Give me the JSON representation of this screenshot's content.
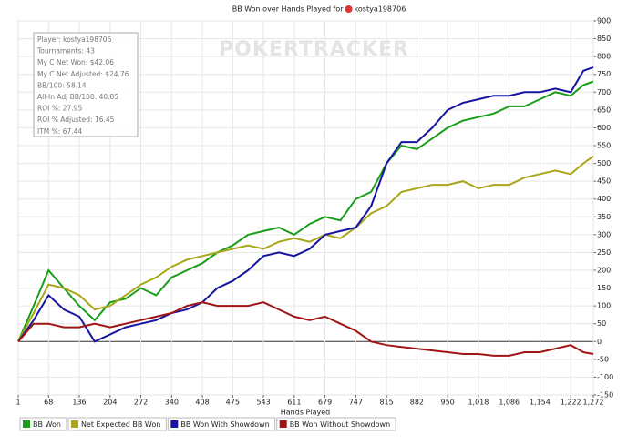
{
  "chart_data": {
    "type": "line",
    "title": "BB Won over Hands Played for",
    "player": "kostya198706",
    "x_label": "Hands Played",
    "watermark": "POKERTRACKER",
    "stats_box": [
      "Player: kostya198706",
      "Tournaments: 43",
      "My C Net Won: $42.06",
      "My C Net Adjusted: $24.76",
      "BB/100: 58.14",
      "All-In Adj BB/100: 40.85",
      "ROI %: 27.95",
      "ROI % Adjusted: 16.45",
      "ITM %: 67.44"
    ],
    "x": [
      1,
      35,
      68,
      102,
      136,
      170,
      204,
      238,
      272,
      306,
      340,
      374,
      408,
      441,
      475,
      509,
      543,
      577,
      611,
      645,
      679,
      713,
      747,
      781,
      815,
      848,
      882,
      916,
      950,
      984,
      1018,
      1052,
      1086,
      1120,
      1154,
      1188,
      1222,
      1250,
      1272
    ],
    "series": [
      {
        "name": "BB Won",
        "color": "#1a9e1a",
        "values": [
          0,
          100,
          200,
          150,
          100,
          60,
          110,
          120,
          150,
          130,
          180,
          200,
          220,
          250,
          270,
          300,
          310,
          320,
          300,
          330,
          350,
          340,
          400,
          420,
          500,
          550,
          540,
          570,
          600,
          620,
          630,
          640,
          660,
          660,
          680,
          700,
          690,
          720,
          730
        ]
      },
      {
        "name": "Net Expected BB Won",
        "color": "#a8a61a",
        "values": [
          0,
          80,
          160,
          150,
          130,
          90,
          100,
          130,
          160,
          180,
          210,
          230,
          240,
          250,
          260,
          270,
          260,
          280,
          290,
          280,
          300,
          290,
          320,
          360,
          380,
          420,
          430,
          440,
          440,
          450,
          430,
          440,
          440,
          460,
          470,
          480,
          470,
          500,
          520
        ]
      },
      {
        "name": "BB Won With Showdown",
        "color": "#1515a0",
        "values": [
          0,
          60,
          130,
          90,
          70,
          0,
          20,
          40,
          50,
          60,
          80,
          90,
          110,
          150,
          170,
          200,
          240,
          250,
          240,
          260,
          300,
          310,
          320,
          380,
          500,
          560,
          560,
          600,
          650,
          670,
          680,
          690,
          690,
          700,
          700,
          710,
          700,
          760,
          770
        ]
      },
      {
        "name": "BB Won Without Showdown",
        "color": "#a01515",
        "values": [
          0,
          50,
          50,
          40,
          40,
          50,
          40,
          50,
          60,
          70,
          80,
          100,
          110,
          100,
          100,
          100,
          110,
          90,
          70,
          60,
          70,
          50,
          30,
          0,
          -10,
          -15,
          -20,
          -25,
          -30,
          -35,
          -35,
          -40,
          -40,
          -30,
          -30,
          -20,
          -10,
          -30,
          -35
        ]
      }
    ],
    "xlim": [
      1,
      1272
    ],
    "xticks": [
      1,
      68,
      136,
      204,
      272,
      340,
      408,
      475,
      543,
      611,
      679,
      747,
      815,
      882,
      950,
      {
        "value": 1018,
        "label": "1,018"
      },
      {
        "value": 1086,
        "label": "1,086"
      },
      {
        "value": 1154,
        "label": "1,154"
      },
      {
        "value": 1222,
        "label": "1,222"
      },
      {
        "value": 1272,
        "label": "1,272"
      }
    ],
    "ylim": [
      -150,
      900
    ],
    "yticks": [
      -150,
      -100,
      -50,
      0,
      50,
      100,
      150,
      200,
      250,
      300,
      350,
      400,
      450,
      500,
      550,
      600,
      650,
      700,
      750,
      800,
      850,
      900
    ],
    "grid": true
  }
}
